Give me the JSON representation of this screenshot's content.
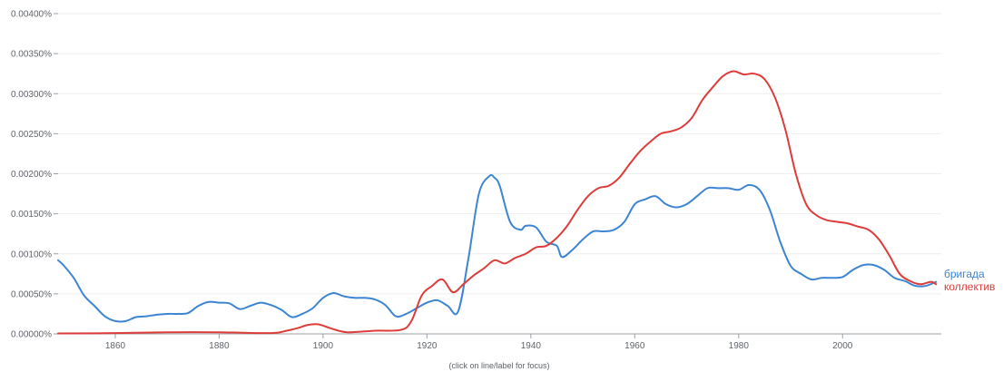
{
  "chart_data": {
    "type": "line",
    "xlim": [
      1849,
      2019
    ],
    "ylim": [
      0,
      0.004
    ],
    "yticks": [
      "0.00000%",
      "0.00050%",
      "0.00100%",
      "0.00150%",
      "0.00200%",
      "0.00250%",
      "0.00300%",
      "0.00350%",
      "0.00400%"
    ],
    "xticks": [
      "1860",
      "1880",
      "1900",
      "1920",
      "1940",
      "1960",
      "1980",
      "2000"
    ],
    "grid": true,
    "footnote": "(click on line/label for focus)",
    "series": [
      {
        "name": "бригада",
        "color": "#3d85d2",
        "x": [
          1849,
          1850,
          1852,
          1854,
          1856,
          1858,
          1860,
          1862,
          1864,
          1866,
          1868,
          1870,
          1872,
          1874,
          1876,
          1878,
          1880,
          1882,
          1884,
          1886,
          1888,
          1890,
          1892,
          1894,
          1896,
          1898,
          1900,
          1902,
          1904,
          1906,
          1908,
          1910,
          1912,
          1914,
          1916,
          1918,
          1920,
          1922,
          1924,
          1926,
          1928,
          1930,
          1932,
          1933,
          1934,
          1936,
          1938,
          1939,
          1941,
          1943,
          1945,
          1946,
          1948,
          1950,
          1952,
          1954,
          1956,
          1958,
          1960,
          1962,
          1964,
          1966,
          1968,
          1970,
          1972,
          1974,
          1976,
          1978,
          1980,
          1982,
          1984,
          1986,
          1988,
          1990,
          1992,
          1994,
          1996,
          1998,
          2000,
          2002,
          2004,
          2006,
          2008,
          2010,
          2012,
          2014,
          2016,
          2018
        ],
        "y": [
          0.00092,
          0.00086,
          0.0007,
          0.00048,
          0.00035,
          0.00022,
          0.00016,
          0.00016,
          0.00021,
          0.00022,
          0.00024,
          0.00025,
          0.00025,
          0.00026,
          0.00035,
          0.0004,
          0.00039,
          0.00038,
          0.00031,
          0.00035,
          0.00039,
          0.00036,
          0.0003,
          0.00021,
          0.00025,
          0.00032,
          0.00045,
          0.00051,
          0.00047,
          0.00045,
          0.00045,
          0.00043,
          0.00036,
          0.00022,
          0.00025,
          0.00032,
          0.00039,
          0.00042,
          0.00035,
          0.00028,
          0.00095,
          0.00175,
          0.00197,
          0.00195,
          0.00185,
          0.0014,
          0.0013,
          0.00135,
          0.00133,
          0.00115,
          0.0011,
          0.00096,
          0.00105,
          0.00118,
          0.00128,
          0.00128,
          0.0013,
          0.0014,
          0.00162,
          0.00168,
          0.00172,
          0.00162,
          0.00158,
          0.00162,
          0.00172,
          0.00182,
          0.00182,
          0.00182,
          0.0018,
          0.00186,
          0.0018,
          0.00155,
          0.00115,
          0.00085,
          0.00075,
          0.00068,
          0.0007,
          0.0007,
          0.00071,
          0.0008,
          0.00086,
          0.00086,
          0.0008,
          0.0007,
          0.00066,
          0.0006,
          0.0006,
          0.00065
        ]
      },
      {
        "name": "коллектив",
        "color": "#dc3d3a",
        "x": [
          1849,
          1860,
          1870,
          1880,
          1890,
          1893,
          1895,
          1897,
          1899,
          1901,
          1903,
          1905,
          1910,
          1915,
          1917,
          1919,
          1921,
          1923,
          1925,
          1927,
          1929,
          1931,
          1933,
          1935,
          1937,
          1939,
          1941,
          1943,
          1945,
          1947,
          1949,
          1951,
          1953,
          1955,
          1957,
          1959,
          1961,
          1963,
          1965,
          1967,
          1969,
          1971,
          1973,
          1975,
          1977,
          1979,
          1981,
          1983,
          1985,
          1987,
          1989,
          1991,
          1993,
          1995,
          1997,
          1999,
          2001,
          2003,
          2005,
          2007,
          2009,
          2011,
          2013,
          2015,
          2017,
          2018
        ],
        "y": [
          5e-06,
          1e-05,
          2e-05,
          2e-05,
          1e-05,
          4e-05,
          7e-05,
          0.00011,
          0.00012,
          8e-05,
          4e-05,
          2e-05,
          4e-05,
          5e-05,
          0.00016,
          0.00048,
          0.0006,
          0.00068,
          0.00052,
          0.00062,
          0.00073,
          0.00082,
          0.00092,
          0.00088,
          0.00095,
          0.001,
          0.00108,
          0.0011,
          0.0012,
          0.00135,
          0.00155,
          0.00172,
          0.00182,
          0.00185,
          0.00195,
          0.00212,
          0.00228,
          0.0024,
          0.0025,
          0.00253,
          0.00258,
          0.0027,
          0.00292,
          0.00308,
          0.00322,
          0.00328,
          0.00324,
          0.00325,
          0.00318,
          0.00295,
          0.00255,
          0.002,
          0.00162,
          0.00148,
          0.00142,
          0.0014,
          0.00138,
          0.00134,
          0.0013,
          0.00118,
          0.00098,
          0.00075,
          0.00066,
          0.00062,
          0.00065,
          0.00062
        ]
      }
    ]
  }
}
